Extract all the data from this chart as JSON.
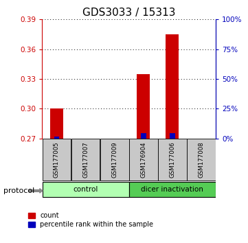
{
  "title": "GDS3033 / 15313",
  "samples": [
    "GSM177005",
    "GSM177007",
    "GSM177009",
    "GSM176904",
    "GSM177006",
    "GSM177008"
  ],
  "group_colors": {
    "control": "#b2ffb2",
    "dicer inactivation": "#55cc55"
  },
  "red_values": [
    0.3,
    0.27,
    0.27,
    0.335,
    0.375,
    0.27
  ],
  "blue_values": [
    0.272,
    0.27,
    0.27,
    0.2755,
    0.2755,
    0.27
  ],
  "ylim_left": [
    0.27,
    0.39
  ],
  "ylim_right": [
    0,
    100
  ],
  "yticks_left": [
    0.27,
    0.3,
    0.33,
    0.36,
    0.39
  ],
  "yticks_right": [
    0,
    25,
    50,
    75,
    100
  ],
  "bar_color_red": "#cc0000",
  "bar_color_blue": "#0000bb",
  "left_axis_color": "#cc0000",
  "right_axis_color": "#0000bb",
  "title_fontsize": 11,
  "tick_label_fontsize": 7.5,
  "legend_label_count": "count",
  "legend_label_percentile": "percentile rank within the sample",
  "protocol_label": "protocol",
  "group_label_control": "control",
  "group_label_dicer": "dicer inactivation",
  "group_boundary": 3
}
